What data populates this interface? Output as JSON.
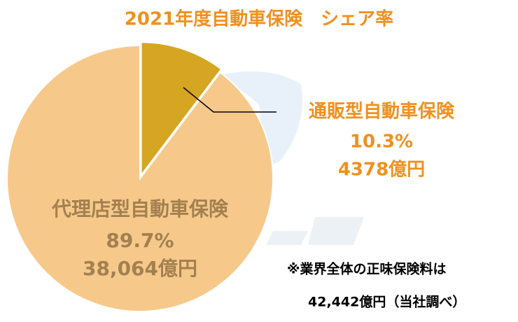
{
  "chart_data": {
    "type": "pie",
    "title": "2021年度自動車保険　シェア率",
    "categories": [
      "通販型自動車保険",
      "代理店型自動車保険"
    ],
    "values": [
      10.3,
      89.7
    ],
    "value_labels": [
      "10.3%",
      "89.7%"
    ],
    "amounts": [
      4378,
      38064
    ],
    "amount_labels": [
      "4378億円",
      "38,064億円"
    ],
    "colors": [
      "#d6a521",
      "#f6c98b"
    ],
    "label_colors": [
      "#f0901e",
      "#a3804f"
    ],
    "title_color": "#f0901e",
    "annotations": [
      "※業界全体の正味保険料は",
      "42,442億円（当社調べ）"
    ]
  }
}
